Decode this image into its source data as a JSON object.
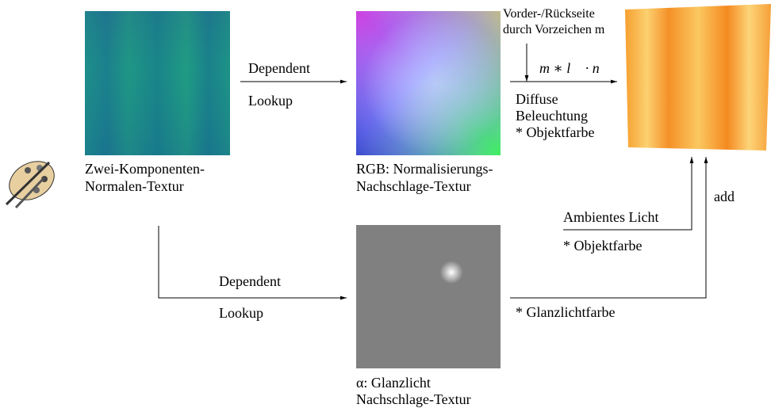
{
  "nodes": [
    {
      "label": [
        "Zwei-Komponenten-",
        "Normalen-Textur"
      ]
    },
    {
      "label": [
        "RGB: Normalisierungs-",
        "Nachschlage-Textur"
      ]
    },
    {
      "label": [
        "α: Glanzlicht",
        "Nachschlage-Textur"
      ]
    }
  ],
  "edges": [
    {
      "label": [
        "Dependent",
        "Lookup"
      ]
    },
    {
      "label": [
        "Dependent",
        "Lookup"
      ]
    },
    {
      "label": [
        "Vorder-/Rückseite",
        "durch Vorzeichen m"
      ]
    },
    {
      "label": [
        "m ∗ l⃗ · n⃗"
      ]
    },
    {
      "label": [
        "Diffuse",
        "Beleuchtung",
        "* Objektfarbe"
      ]
    },
    {
      "label": [
        "Ambientes Licht",
        "* Objektfarbe"
      ]
    },
    {
      "label": [
        "* Glanzlichtfarbe"
      ]
    },
    {
      "label": [
        "add"
      ]
    }
  ]
}
